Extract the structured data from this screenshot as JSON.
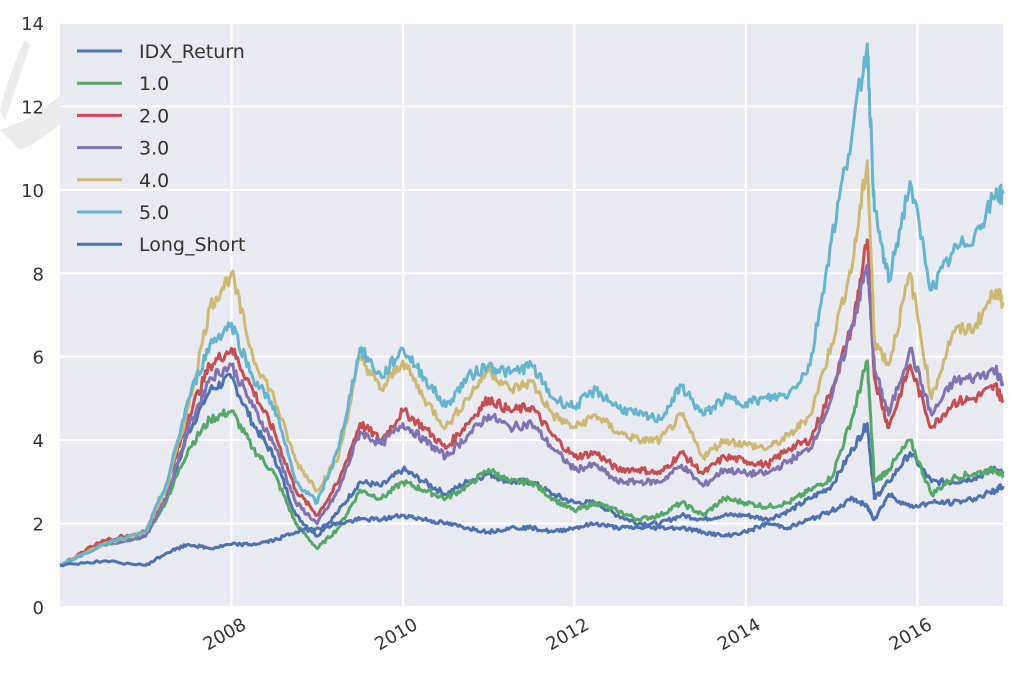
{
  "chart_data": {
    "type": "line",
    "title": "",
    "xlabel": "",
    "ylabel": "",
    "xlim": [
      "2006-01",
      "2017-01"
    ],
    "ylim": [
      0,
      14
    ],
    "yticks": [
      "0",
      "2",
      "4",
      "6",
      "8",
      "10",
      "12",
      "14"
    ],
    "xticks": [
      {
        "value": "2008-01",
        "label": "2008"
      },
      {
        "value": "2010-01",
        "label": "2010"
      },
      {
        "value": "2012-01",
        "label": "2012"
      },
      {
        "value": "2014-01",
        "label": "2014"
      },
      {
        "value": "2016-01",
        "label": "2016"
      }
    ],
    "grid": true,
    "background": "#eaeaf2",
    "legend_position": "top-left",
    "x": [
      "2006-01",
      "2006-07",
      "2007-01",
      "2007-04",
      "2007-07",
      "2007-10",
      "2008-01",
      "2008-04",
      "2008-07",
      "2008-10",
      "2009-01",
      "2009-04",
      "2009-07",
      "2009-10",
      "2010-01",
      "2010-04",
      "2010-07",
      "2010-10",
      "2011-01",
      "2011-04",
      "2011-07",
      "2011-10",
      "2012-01",
      "2012-04",
      "2012-07",
      "2012-10",
      "2013-01",
      "2013-04",
      "2013-07",
      "2013-10",
      "2014-01",
      "2014-04",
      "2014-07",
      "2014-10",
      "2015-01",
      "2015-04",
      "2015-06",
      "2015-07",
      "2015-09",
      "2015-12",
      "2016-03",
      "2016-06",
      "2016-09",
      "2016-12",
      "2017-01"
    ],
    "series": [
      {
        "name": "IDX_Return",
        "color": "#4c72b0",
        "values": [
          1.0,
          1.5,
          1.7,
          2.6,
          4.2,
          5.2,
          5.5,
          4.4,
          3.6,
          2.2,
          1.7,
          2.3,
          3.0,
          2.9,
          3.3,
          3.0,
          2.7,
          3.0,
          3.2,
          3.0,
          3.0,
          2.7,
          2.5,
          2.5,
          2.2,
          2.0,
          2.0,
          2.2,
          2.1,
          2.2,
          2.2,
          2.1,
          2.3,
          2.6,
          2.9,
          3.8,
          4.4,
          2.6,
          3.0,
          3.7,
          3.0,
          3.0,
          3.1,
          3.3,
          3.2
        ]
      },
      {
        "name": "1.0",
        "color": "#55a868",
        "values": [
          1.0,
          1.5,
          1.7,
          2.6,
          3.8,
          4.5,
          4.7,
          3.8,
          3.2,
          2.0,
          1.4,
          1.9,
          2.8,
          2.6,
          3.0,
          2.8,
          2.6,
          2.9,
          3.3,
          3.0,
          3.0,
          2.6,
          2.3,
          2.5,
          2.3,
          2.1,
          2.2,
          2.5,
          2.2,
          2.6,
          2.5,
          2.4,
          2.5,
          2.8,
          3.1,
          4.6,
          5.9,
          3.0,
          3.3,
          4.0,
          2.7,
          3.1,
          3.2,
          3.3,
          3.1
        ]
      },
      {
        "name": "2.0",
        "color": "#c44e52",
        "values": [
          1.0,
          1.6,
          1.8,
          2.9,
          4.6,
          5.8,
          6.2,
          5.2,
          4.2,
          2.8,
          2.2,
          3.0,
          4.4,
          4.0,
          4.7,
          4.3,
          3.8,
          4.4,
          5.0,
          4.7,
          4.8,
          4.1,
          3.6,
          3.7,
          3.3,
          3.3,
          3.2,
          3.7,
          3.2,
          3.6,
          3.5,
          3.4,
          3.8,
          4.0,
          5.2,
          6.8,
          8.8,
          5.5,
          4.3,
          5.8,
          4.3,
          4.9,
          5.0,
          5.3,
          4.9
        ]
      },
      {
        "name": "3.0",
        "color": "#8172b2",
        "values": [
          1.0,
          1.5,
          1.7,
          2.7,
          4.3,
          5.5,
          5.8,
          4.8,
          3.9,
          2.5,
          2.0,
          2.8,
          4.2,
          3.9,
          4.4,
          4.0,
          3.6,
          4.1,
          4.6,
          4.3,
          4.4,
          3.8,
          3.3,
          3.4,
          3.0,
          3.0,
          3.0,
          3.4,
          2.9,
          3.3,
          3.2,
          3.2,
          3.5,
          3.8,
          5.0,
          6.8,
          8.2,
          5.7,
          4.6,
          6.2,
          4.6,
          5.4,
          5.5,
          5.7,
          5.3
        ]
      },
      {
        "name": "4.0",
        "color": "#ccb974",
        "values": [
          1.0,
          1.5,
          1.8,
          2.9,
          4.8,
          7.2,
          8.0,
          6.0,
          5.0,
          3.5,
          2.8,
          3.6,
          6.0,
          5.2,
          5.9,
          5.0,
          4.3,
          5.0,
          5.7,
          5.2,
          5.4,
          4.6,
          4.3,
          4.6,
          4.2,
          4.0,
          4.0,
          4.6,
          3.6,
          4.0,
          3.9,
          3.8,
          4.1,
          4.6,
          6.3,
          8.3,
          10.7,
          6.4,
          5.8,
          8.0,
          5.0,
          6.6,
          6.7,
          7.6,
          7.3
        ]
      },
      {
        "name": "5.0",
        "color": "#64b5cd",
        "values": [
          1.0,
          1.5,
          1.8,
          3.0,
          5.0,
          6.3,
          6.8,
          5.5,
          4.8,
          3.0,
          2.5,
          3.8,
          6.2,
          5.5,
          6.2,
          5.5,
          4.8,
          5.5,
          5.8,
          5.6,
          5.8,
          5.0,
          4.8,
          5.2,
          4.8,
          4.6,
          4.5,
          5.3,
          4.6,
          5.0,
          4.9,
          5.0,
          5.1,
          5.8,
          8.8,
          11.5,
          13.5,
          9.5,
          7.8,
          10.2,
          7.6,
          8.5,
          8.9,
          9.9,
          9.9
        ]
      },
      {
        "name": "Long_Short",
        "color": "#4c72b0",
        "values": [
          1.0,
          1.1,
          1.0,
          1.3,
          1.5,
          1.4,
          1.5,
          1.5,
          1.6,
          1.8,
          1.9,
          2.0,
          2.1,
          2.1,
          2.2,
          2.1,
          2.0,
          1.9,
          1.8,
          1.9,
          1.9,
          1.8,
          1.9,
          2.0,
          1.9,
          1.9,
          1.9,
          1.9,
          1.8,
          1.7,
          1.8,
          2.0,
          1.9,
          2.1,
          2.3,
          2.6,
          2.4,
          2.1,
          2.7,
          2.4,
          2.5,
          2.5,
          2.6,
          2.8,
          2.9
        ]
      }
    ]
  }
}
